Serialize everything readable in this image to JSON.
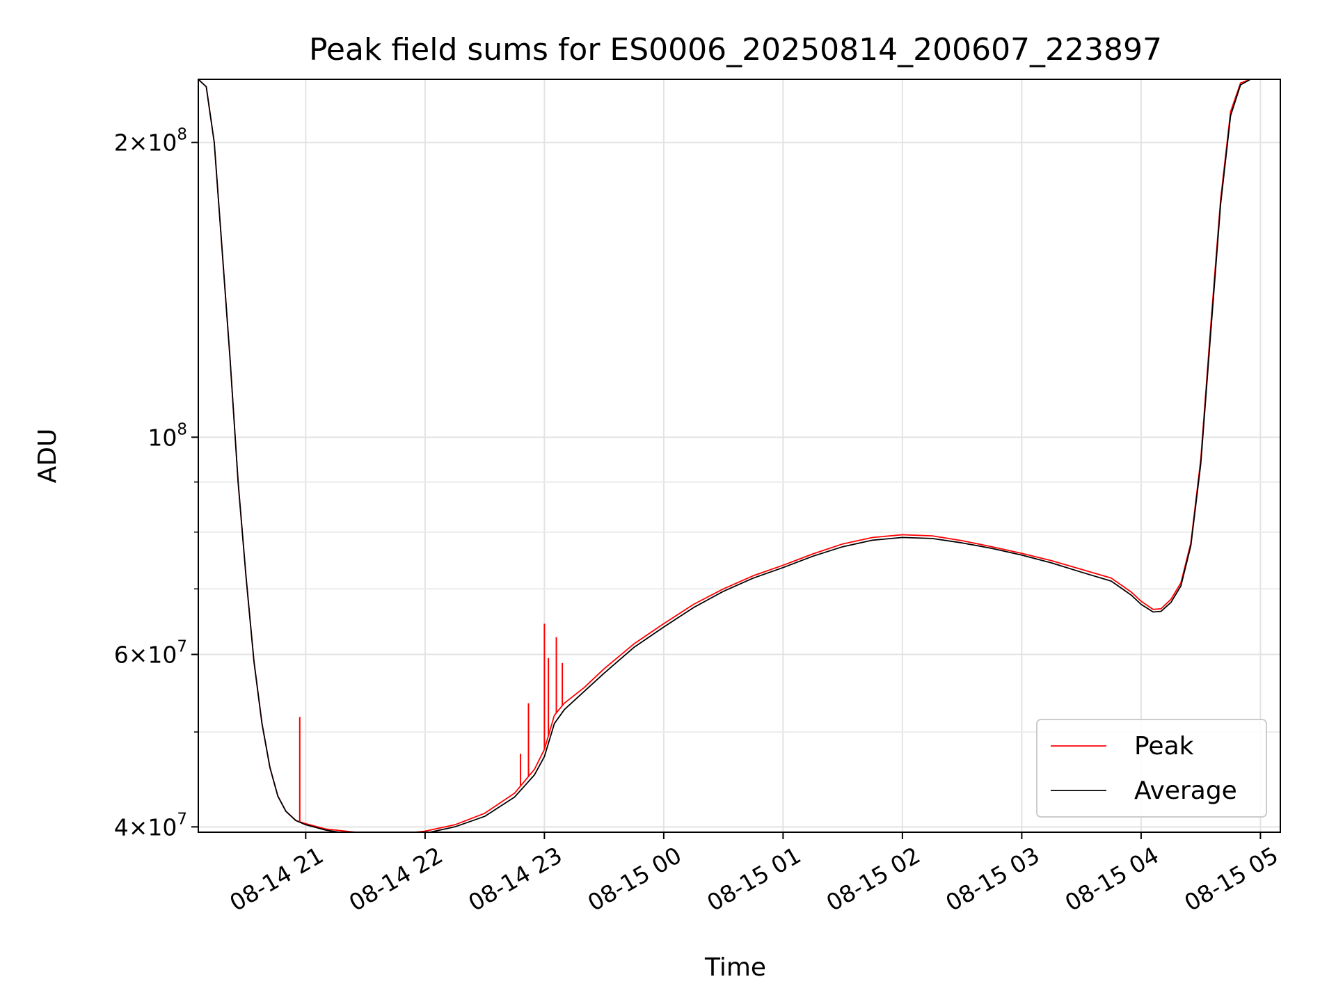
{
  "chart_data": {
    "type": "line",
    "title": "Peak field sums for ES0006_20250814_200607_223897",
    "xlabel": "Time",
    "ylabel": "ADU",
    "yscale": "log",
    "xlim": [
      "2025-08-14 20:06",
      "2025-08-15 05:10"
    ],
    "ylim": [
      39500000,
      232000000
    ],
    "grid": true,
    "legend_position": "lower-right",
    "x_ticks": [
      {
        "t": "2025-08-14 21:00",
        "label": "08-14 21"
      },
      {
        "t": "2025-08-14 22:00",
        "label": "08-14 22"
      },
      {
        "t": "2025-08-14 23:00",
        "label": "08-14 23"
      },
      {
        "t": "2025-08-15 00:00",
        "label": "08-15 00"
      },
      {
        "t": "2025-08-15 01:00",
        "label": "08-15 01"
      },
      {
        "t": "2025-08-15 02:00",
        "label": "08-15 02"
      },
      {
        "t": "2025-08-15 03:00",
        "label": "08-15 03"
      },
      {
        "t": "2025-08-15 04:00",
        "label": "08-15 04"
      },
      {
        "t": "2025-08-15 05:00",
        "label": "08-15 05"
      }
    ],
    "y_major_ticks": [
      {
        "value": 40000000,
        "mantissa": "4",
        "exponent": "7"
      },
      {
        "value": 60000000,
        "mantissa": "6",
        "exponent": "7"
      },
      {
        "value": 100000000,
        "mantissa": "",
        "exponent": "8"
      },
      {
        "value": 200000000,
        "mantissa": "2",
        "exponent": "8"
      }
    ],
    "y_minor_ticks": [
      50000000,
      70000000,
      80000000,
      90000000
    ],
    "series": [
      {
        "name": "Peak",
        "color": "#ff0000",
        "x": [
          "2025-08-14 20:06",
          "2025-08-14 20:10",
          "2025-08-14 20:14",
          "2025-08-14 20:18",
          "2025-08-14 20:22",
          "2025-08-14 20:26",
          "2025-08-14 20:30",
          "2025-08-14 20:34",
          "2025-08-14 20:38",
          "2025-08-14 20:42",
          "2025-08-14 20:46",
          "2025-08-14 20:50",
          "2025-08-14 20:55",
          "2025-08-14 21:00",
          "2025-08-14 21:10",
          "2025-08-14 21:20",
          "2025-08-14 21:30",
          "2025-08-14 21:40",
          "2025-08-14 21:50",
          "2025-08-14 22:00",
          "2025-08-14 22:15",
          "2025-08-14 22:30",
          "2025-08-14 22:45",
          "2025-08-14 22:55",
          "2025-08-14 23:00",
          "2025-08-14 23:05",
          "2025-08-14 23:10",
          "2025-08-14 23:20",
          "2025-08-14 23:30",
          "2025-08-14 23:45",
          "2025-08-15 00:00",
          "2025-08-15 00:15",
          "2025-08-15 00:30",
          "2025-08-15 00:45",
          "2025-08-15 01:00",
          "2025-08-15 01:15",
          "2025-08-15 01:30",
          "2025-08-15 01:45",
          "2025-08-15 02:00",
          "2025-08-15 02:15",
          "2025-08-15 02:30",
          "2025-08-15 02:45",
          "2025-08-15 03:00",
          "2025-08-15 03:15",
          "2025-08-15 03:30",
          "2025-08-15 03:45",
          "2025-08-15 03:55",
          "2025-08-15 04:00",
          "2025-08-15 04:06",
          "2025-08-15 04:10",
          "2025-08-15 04:15",
          "2025-08-15 04:20",
          "2025-08-15 04:25",
          "2025-08-15 04:30",
          "2025-08-15 04:35",
          "2025-08-15 04:40",
          "2025-08-15 04:45",
          "2025-08-15 04:50",
          "2025-08-15 04:55",
          "2025-08-15 05:00",
          "2025-08-15 05:04"
        ],
        "y": [
          232000000,
          228000000,
          200000000,
          155000000,
          120000000,
          90000000,
          72000000,
          59000000,
          51000000,
          46000000,
          43000000,
          41500000,
          40600000,
          40300000,
          39800000,
          39600000,
          39400000,
          39300000,
          39400000,
          39600000,
          40200000,
          41300000,
          43300000,
          45800000,
          48000000,
          52000000,
          53500000,
          55500000,
          58000000,
          61500000,
          64500000,
          67500000,
          70000000,
          72200000,
          74000000,
          76000000,
          77800000,
          79000000,
          79500000,
          79300000,
          78400000,
          77300000,
          76100000,
          74800000,
          73300000,
          71800000,
          69500000,
          68000000,
          66700000,
          66800000,
          68300000,
          71000000,
          78000000,
          95000000,
          130000000,
          175000000,
          215000000,
          230000000,
          232000000,
          232000000,
          232000000
        ]
      },
      {
        "name": "Average",
        "color": "#000000",
        "x": [
          "2025-08-14 20:06",
          "2025-08-14 20:10",
          "2025-08-14 20:14",
          "2025-08-14 20:18",
          "2025-08-14 20:22",
          "2025-08-14 20:26",
          "2025-08-14 20:30",
          "2025-08-14 20:34",
          "2025-08-14 20:38",
          "2025-08-14 20:42",
          "2025-08-14 20:46",
          "2025-08-14 20:50",
          "2025-08-14 20:55",
          "2025-08-14 21:00",
          "2025-08-14 21:10",
          "2025-08-14 21:20",
          "2025-08-14 21:30",
          "2025-08-14 21:40",
          "2025-08-14 21:50",
          "2025-08-14 22:00",
          "2025-08-14 22:15",
          "2025-08-14 22:30",
          "2025-08-14 22:45",
          "2025-08-14 22:55",
          "2025-08-14 23:00",
          "2025-08-14 23:05",
          "2025-08-14 23:10",
          "2025-08-14 23:20",
          "2025-08-14 23:30",
          "2025-08-14 23:45",
          "2025-08-15 00:00",
          "2025-08-15 00:15",
          "2025-08-15 00:30",
          "2025-08-15 00:45",
          "2025-08-15 01:00",
          "2025-08-15 01:15",
          "2025-08-15 01:30",
          "2025-08-15 01:45",
          "2025-08-15 02:00",
          "2025-08-15 02:15",
          "2025-08-15 02:30",
          "2025-08-15 02:45",
          "2025-08-15 03:00",
          "2025-08-15 03:15",
          "2025-08-15 03:30",
          "2025-08-15 03:45",
          "2025-08-15 03:55",
          "2025-08-15 04:00",
          "2025-08-15 04:06",
          "2025-08-15 04:10",
          "2025-08-15 04:15",
          "2025-08-15 04:20",
          "2025-08-15 04:25",
          "2025-08-15 04:30",
          "2025-08-15 04:35",
          "2025-08-15 04:40",
          "2025-08-15 04:45",
          "2025-08-15 04:50",
          "2025-08-15 04:55",
          "2025-08-15 05:00",
          "2025-08-15 05:04"
        ],
        "y": [
          232000000,
          228000000,
          200000000,
          155000000,
          120000000,
          90000000,
          72000000,
          59000000,
          51000000,
          46000000,
          43000000,
          41500000,
          40600000,
          40200000,
          39700000,
          39400000,
          39200000,
          39100000,
          39200000,
          39400000,
          40000000,
          41000000,
          42900000,
          45200000,
          47200000,
          51000000,
          52700000,
          55000000,
          57400000,
          61000000,
          64000000,
          67000000,
          69600000,
          71800000,
          73600000,
          75600000,
          77300000,
          78500000,
          79000000,
          78800000,
          78000000,
          77000000,
          75800000,
          74400000,
          72800000,
          71300000,
          69000000,
          67500000,
          66300000,
          66400000,
          67800000,
          70500000,
          77500000,
          94000000,
          128000000,
          173000000,
          213000000,
          229000000,
          232000000,
          232000000,
          232000000
        ]
      }
    ],
    "spikes": [
      {
        "t": "2025-08-14 20:57",
        "value": 51800000
      },
      {
        "t": "2025-08-14 22:48",
        "value": 47500000
      },
      {
        "t": "2025-08-14 22:52",
        "value": 53500000
      },
      {
        "t": "2025-08-14 23:00",
        "value": 64500000
      },
      {
        "t": "2025-08-14 23:02",
        "value": 59500000
      },
      {
        "t": "2025-08-14 23:06",
        "value": 62500000
      },
      {
        "t": "2025-08-14 23:09",
        "value": 58800000
      }
    ]
  }
}
